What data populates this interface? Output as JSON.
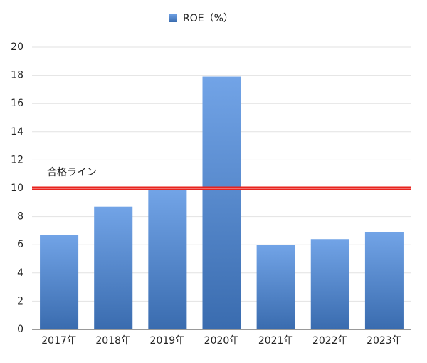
{
  "chart_data": {
    "type": "bar",
    "categories": [
      "2017年",
      "2018年",
      "2019年",
      "2020年",
      "2021年",
      "2022年",
      "2023年"
    ],
    "series": [
      {
        "name": "ROE（%）",
        "color": "#4a8ae0",
        "values": [
          6.7,
          8.7,
          9.9,
          17.9,
          6.0,
          6.4,
          6.9
        ]
      }
    ],
    "ylim": [
      0,
      20
    ],
    "yticks": [
      0,
      2,
      4,
      6,
      8,
      10,
      12,
      14,
      16,
      18,
      20
    ],
    "grid": true,
    "reference_line": {
      "value": 10,
      "label": "合格ライン",
      "color": "#e8231e"
    },
    "legend": "top"
  }
}
